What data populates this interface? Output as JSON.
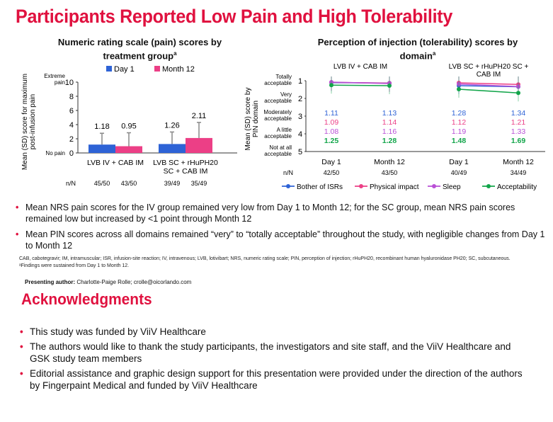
{
  "slide_title": "Participants Reported Low Pain and High Tolerability",
  "left_title": "Numeric rating scale (pain) scores by treatment group",
  "left_title_sup": "a",
  "right_title": "Perception of injection (tolerability) scores by domain",
  "right_title_sup": "a",
  "chart_data": [
    {
      "type": "bar",
      "ylabel": "Mean (SD) score for maximum post-infusion pain",
      "ylim": [
        0,
        10
      ],
      "yticks": [
        0,
        2,
        4,
        6,
        8,
        10
      ],
      "anchors": {
        "top": "Extreme pain",
        "bottom": "No pain"
      },
      "groups": [
        "LVB IV + CAB IM",
        "LVB SC + rHuPH20 SC + CAB IM"
      ],
      "series": [
        {
          "name": "Day 1",
          "color": "#2e63d6",
          "values": [
            1.18,
            1.26
          ],
          "sd": [
            1.6,
            1.7
          ]
        },
        {
          "name": "Month 12",
          "color": "#ec3f86",
          "values": [
            0.95,
            2.11
          ],
          "sd": [
            1.9,
            2.2
          ]
        }
      ],
      "data_labels": [
        "1.18",
        "0.95",
        "1.26",
        "2.11"
      ],
      "nn_label": "n/N",
      "nn": [
        "45/50",
        "43/50",
        "39/49",
        "35/49"
      ],
      "legend_position": "top"
    },
    {
      "type": "line",
      "ylabel": "Mean (SD) score by PIN domain",
      "ylim": [
        5,
        1
      ],
      "yticks": [
        1,
        2,
        3,
        4,
        5
      ],
      "ytick_text": [
        "Totally acceptable",
        "Very acceptable",
        "Moderately acceptable",
        "A little acceptable",
        "Not at all acceptable"
      ],
      "panels": [
        {
          "title": "LVB IV + CAB IM",
          "x": [
            "Day 1",
            "Month 12"
          ],
          "nn": [
            "42/50",
            "43/50"
          ]
        },
        {
          "title": "LVB SC + rHuPH20 SC + CAB IM",
          "x": [
            "Day 1",
            "Month 12"
          ],
          "nn": [
            "40/49",
            "34/49"
          ]
        }
      ],
      "nn_label": "n/N",
      "series": [
        {
          "name": "Bother of ISRs",
          "color": "#2e63d6",
          "values": [
            [
              1.11,
              1.13
            ],
            [
              1.28,
              1.34
            ]
          ],
          "labels": [
            [
              "1.11",
              "1.13"
            ],
            [
              "1.28",
              "1.34"
            ]
          ]
        },
        {
          "name": "Physical impact",
          "color": "#ec3f86",
          "values": [
            [
              1.09,
              1.14
            ],
            [
              1.12,
              1.21
            ]
          ],
          "labels": [
            [
              "1.09",
              "1.14"
            ],
            [
              "1.12",
              "1.21"
            ]
          ]
        },
        {
          "name": "Sleep",
          "color": "#b94fd6",
          "values": [
            [
              1.08,
              1.16
            ],
            [
              1.19,
              1.33
            ]
          ],
          "labels": [
            [
              "1.08",
              "1.16"
            ],
            [
              "1.19",
              "1.33"
            ]
          ]
        },
        {
          "name": "Acceptability",
          "color": "#12a54a",
          "values": [
            [
              1.25,
              1.28
            ],
            [
              1.48,
              1.69
            ]
          ],
          "labels": [
            [
              "1.25",
              "1.28"
            ],
            [
              "1.48",
              "1.69"
            ]
          ]
        }
      ],
      "legend_position": "bottom"
    }
  ],
  "bullets": [
    "Mean NRS pain scores for the IV group remained very low from Day 1 to Month 12; for the SC group, mean NRS pain scores remained low but increased by <1 point through Month 12",
    "Mean PIN scores across all domains remained “very” to “totally acceptable” throughout the study, with negligible changes from Day 1 to Month 12"
  ],
  "footnote_abbrev": "CAB, cabotegravir; IM, intramuscular; ISR, infusion-site reaction; IV, intravenous; LVB, lotivibart; NRS, numeric rating scale; PIN, perception of injection; rHuPH20, recombinant human hyaluronidase PH20; SC, subcutaneous.",
  "footnote_a": "ᵃFindings were sustained from Day 1 to Month 12.",
  "presenting_label": "Presenting author:",
  "presenting_value": "Charlotte-Paige Rolle; crolle@oicorlando.com",
  "ack_title": "Acknowledgments",
  "ack_bullets": [
    "This study was funded by ViiV Healthcare",
    "The authors would like to thank the study participants, the investigators and site staff, and the ViiV Healthcare and GSK study team members",
    "Editorial assistance and graphic design support for this presentation were provided under the direction of the authors by Fingerpaint Medical and funded by ViiV Healthcare"
  ]
}
